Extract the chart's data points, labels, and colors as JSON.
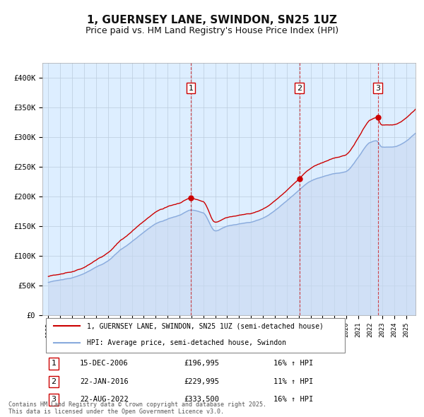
{
  "title": "1, GUERNSEY LANE, SWINDON, SN25 1UZ",
  "subtitle": "Price paid vs. HM Land Registry's House Price Index (HPI)",
  "title_fontsize": 11,
  "subtitle_fontsize": 9,
  "background_color": "#ffffff",
  "plot_bg_color": "#ddeeff",
  "legend_entries": [
    "1, GUERNSEY LANE, SWINDON, SN25 1UZ (semi-detached house)",
    "HPI: Average price, semi-detached house, Swindon"
  ],
  "sale_points": [
    {
      "label": "1",
      "date_year": 2006.96,
      "price": 196995,
      "pct": "16%",
      "date_str": "15-DEC-2006"
    },
    {
      "label": "2",
      "date_year": 2016.06,
      "price": 229995,
      "pct": "11%",
      "date_str": "22-JAN-2016"
    },
    {
      "label": "3",
      "date_year": 2022.64,
      "price": 333500,
      "pct": "16%",
      "date_str": "22-AUG-2022"
    }
  ],
  "ylabel_ticks": [
    "£0",
    "£50K",
    "£100K",
    "£150K",
    "£200K",
    "£250K",
    "£300K",
    "£350K",
    "£400K"
  ],
  "ytick_vals": [
    0,
    50000,
    100000,
    150000,
    200000,
    250000,
    300000,
    350000,
    400000
  ],
  "xlim": [
    1994.5,
    2025.8
  ],
  "ylim": [
    0,
    425000
  ],
  "footnote": "Contains HM Land Registry data © Crown copyright and database right 2025.\nThis data is licensed under the Open Government Licence v3.0.",
  "sale_marker_color": "#cc0000",
  "hpi_line_color": "#88aadd",
  "property_line_color": "#cc0000",
  "vline_color": "#cc0000",
  "grid_color": "#bbccdd",
  "box_color": "#cc0000",
  "hpi_key_years": [
    1995,
    1996,
    1997,
    1998,
    1999,
    2000,
    2001,
    2002,
    2003,
    2004,
    2005,
    2006,
    2007,
    2008,
    2009,
    2010,
    2011,
    2012,
    2013,
    2014,
    2015,
    2016,
    2017,
    2018,
    2019,
    2020,
    2021,
    2022,
    2022.5,
    2023,
    2024,
    2025.5
  ],
  "hpi_key_vals": [
    55000,
    59000,
    63000,
    70000,
    80000,
    90000,
    108000,
    122000,
    138000,
    152000,
    160000,
    168000,
    175000,
    170000,
    140000,
    148000,
    152000,
    155000,
    162000,
    175000,
    192000,
    210000,
    225000,
    232000,
    238000,
    242000,
    265000,
    290000,
    293000,
    282000,
    283000,
    300000
  ]
}
